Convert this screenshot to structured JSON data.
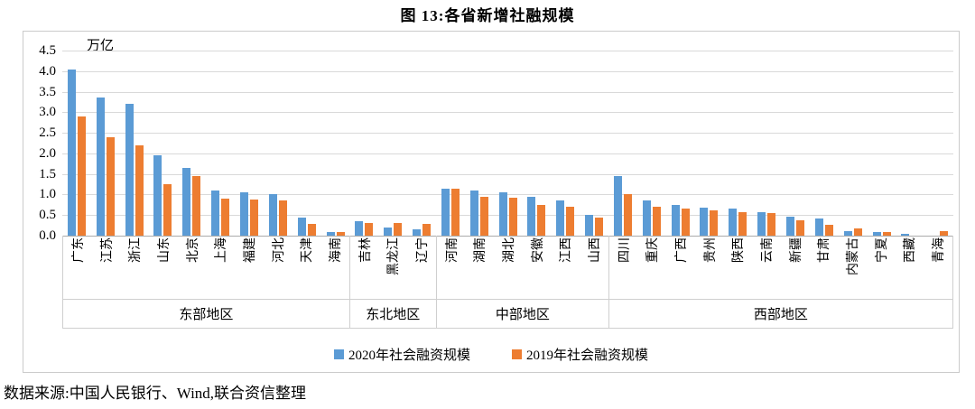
{
  "title": "图 13:各省新增社融规模",
  "footer": "数据来源:中国人民银行、Wind,联合资信整理",
  "chart_data": {
    "type": "bar",
    "title": "图 13:各省新增社融规模",
    "unit_label": "万亿",
    "ylim": [
      0,
      4.5
    ],
    "ytick_step": 0.5,
    "grid": true,
    "legend_position": "bottom",
    "categories": [
      "广东",
      "江苏",
      "浙江",
      "山东",
      "北京",
      "上海",
      "福建",
      "河北",
      "天津",
      "海南",
      "吉林",
      "黑龙江",
      "辽宁",
      "河南",
      "湖南",
      "湖北",
      "安徽",
      "江西",
      "山西",
      "四川",
      "重庆",
      "广西",
      "贵州",
      "陕西",
      "云南",
      "新疆",
      "甘肃",
      "内蒙古",
      "宁夏",
      "西藏",
      "青海"
    ],
    "groups": [
      {
        "label": "东部地区",
        "count": 10
      },
      {
        "label": "东北地区",
        "count": 3
      },
      {
        "label": "中部地区",
        "count": 6
      },
      {
        "label": "西部地区",
        "count": 12
      }
    ],
    "series": [
      {
        "name": "2020年社会融资规模",
        "color": "#5B9BD5",
        "values": [
          4.05,
          3.35,
          3.2,
          1.95,
          1.65,
          1.1,
          1.05,
          1.0,
          0.45,
          0.08,
          0.35,
          0.2,
          0.15,
          1.15,
          1.1,
          1.05,
          0.95,
          0.85,
          0.5,
          1.45,
          0.85,
          0.75,
          0.68,
          0.65,
          0.58,
          0.47,
          0.42,
          0.12,
          0.08,
          0.05,
          0.0
        ]
      },
      {
        "name": "2019年社会融资规模",
        "color": "#ED7D31",
        "values": [
          2.9,
          2.4,
          2.2,
          1.25,
          1.45,
          0.9,
          0.88,
          0.85,
          0.28,
          0.08,
          0.3,
          0.3,
          0.28,
          1.15,
          0.95,
          0.93,
          0.75,
          0.7,
          0.45,
          1.0,
          0.7,
          0.65,
          0.62,
          0.57,
          0.55,
          0.37,
          0.27,
          0.17,
          0.09,
          0.0,
          0.12
        ]
      }
    ],
    "colors": {
      "series_2020": "#5B9BD5",
      "series_2019": "#ED7D31",
      "gridline": "#d9d9d9"
    }
  }
}
